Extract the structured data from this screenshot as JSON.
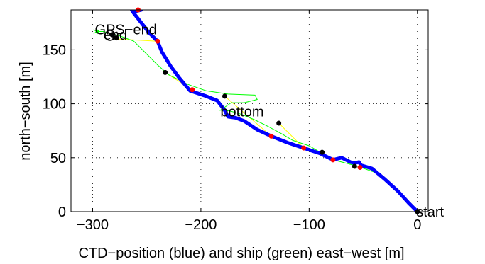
{
  "chart_data": {
    "type": "line",
    "xlabel": "CTD−position (blue) and ship (green) east−west [m]",
    "ylabel": "north−south [m]",
    "xlim": [
      -320,
      10
    ],
    "ylim": [
      0,
      187
    ],
    "x_ticks": [
      -300,
      -200,
      -100,
      0
    ],
    "y_ticks": [
      0,
      50,
      100,
      150
    ],
    "x_tick_labels": [
      "−300",
      "−200",
      "−100",
      "0"
    ],
    "y_tick_labels": [
      "0",
      "50",
      "100",
      "150"
    ],
    "grid": true,
    "colors": {
      "ctd": "#0000ff",
      "ship": "#00ff00",
      "link": "#ffff00",
      "ctd_marker": "#ff0000",
      "ship_marker": "#000000"
    },
    "series": [
      {
        "key": "ctd",
        "values": [
          [
            0,
            0
          ],
          [
            -8,
            8
          ],
          [
            -18,
            19
          ],
          [
            -30,
            30
          ],
          [
            -42,
            40
          ],
          [
            -52,
            43
          ],
          [
            -54,
            46
          ],
          [
            -58,
            45
          ],
          [
            -62,
            46
          ],
          [
            -70,
            50
          ],
          [
            -78,
            48
          ],
          [
            -90,
            54
          ],
          [
            -105,
            59
          ],
          [
            -120,
            64
          ],
          [
            -135,
            70
          ],
          [
            -148,
            76
          ],
          [
            -160,
            84
          ],
          [
            -168,
            87
          ],
          [
            -175,
            88
          ],
          [
            -178,
            94
          ],
          [
            -185,
            103
          ],
          [
            -195,
            107
          ],
          [
            -210,
            112
          ],
          [
            -220,
            124
          ],
          [
            -228,
            135
          ],
          [
            -236,
            148
          ],
          [
            -240,
            158
          ],
          [
            -248,
            166
          ],
          [
            -255,
            175
          ],
          [
            -262,
            184
          ],
          [
            -264,
            187
          ],
          [
            -259,
            186
          ],
          [
            -255,
            187
          ]
        ]
      },
      {
        "key": "ship",
        "values": [
          [
            0,
            0
          ],
          [
            -12,
            12
          ],
          [
            -25,
            25
          ],
          [
            -38,
            36
          ],
          [
            -55,
            42
          ],
          [
            -70,
            46
          ],
          [
            -82,
            49
          ],
          [
            -88,
            54
          ],
          [
            -100,
            61
          ],
          [
            -115,
            66
          ],
          [
            -125,
            72
          ],
          [
            -138,
            79
          ],
          [
            -150,
            85
          ],
          [
            -162,
            90
          ],
          [
            -172,
            93
          ],
          [
            -178,
            94
          ],
          [
            -182,
            94
          ],
          [
            -172,
            101
          ],
          [
            -160,
            101
          ],
          [
            -148,
            104
          ],
          [
            -150,
            108
          ],
          [
            -175,
            109
          ],
          [
            -195,
            112
          ],
          [
            -212,
            118
          ],
          [
            -230,
            127
          ],
          [
            -240,
            136
          ],
          [
            -248,
            144
          ],
          [
            -262,
            158
          ],
          [
            -275,
            163
          ],
          [
            -290,
            167
          ],
          [
            -296,
            167
          ]
        ]
      }
    ],
    "links": [
      [
        [
          -55,
          42
        ],
        [
          -53,
          41
        ]
      ],
      [
        [
          -88,
          55
        ],
        [
          -78,
          48
        ]
      ],
      [
        [
          -128,
          82
        ],
        [
          -105,
          59
        ]
      ],
      [
        [
          -178,
          107
        ],
        [
          -135,
          70
        ]
      ],
      [
        [
          -233,
          129
        ],
        [
          -208,
          113
        ]
      ],
      [
        [
          -277,
          160
        ],
        [
          -240,
          158
        ]
      ]
    ],
    "ctd_markers": [
      [
        -53,
        41
      ],
      [
        -78,
        48
      ],
      [
        -105,
        59
      ],
      [
        -135,
        70
      ],
      [
        -208,
        113
      ],
      [
        -240,
        158
      ],
      [
        -258,
        187
      ]
    ],
    "ship_markers": [
      [
        0,
        0
      ],
      [
        -58,
        42
      ],
      [
        -88,
        55
      ],
      [
        -128,
        82
      ],
      [
        -178,
        107
      ],
      [
        -233,
        129
      ],
      [
        -278,
        161
      ],
      [
        -282,
        164
      ]
    ],
    "annotations": [
      {
        "text": "start",
        "x": -1,
        "y": 0
      },
      {
        "text": "bottom",
        "x": -182,
        "y": 93
      },
      {
        "text": "end",
        "x": -290,
        "y": 164
      },
      {
        "text": "GPS−end",
        "x": -298,
        "y": 169
      }
    ]
  }
}
